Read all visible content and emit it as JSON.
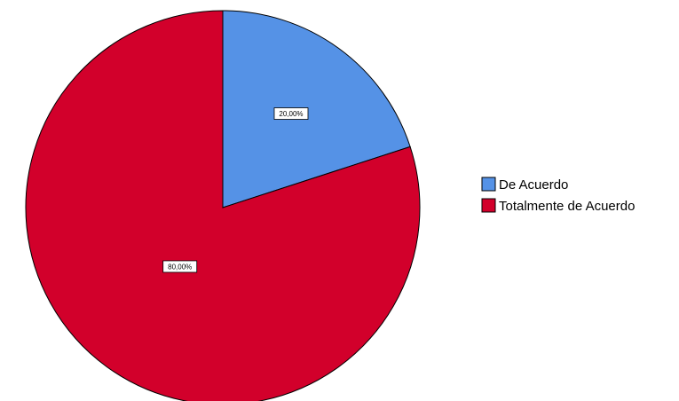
{
  "chart_data": {
    "type": "pie",
    "title": "",
    "categories": [
      "De Acuerdo",
      "Totalmente de Acuerdo"
    ],
    "values": [
      20,
      80
    ],
    "data_labels": [
      "20,00%",
      "80,00%"
    ],
    "colors": [
      "#5592e6",
      "#d2002b"
    ],
    "legend": {
      "placement": "right",
      "entries": [
        "De Acuerdo",
        "Totalmente de Acuerdo"
      ]
    }
  }
}
